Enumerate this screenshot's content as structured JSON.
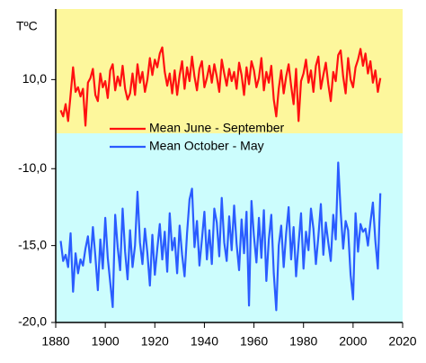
{
  "chart_data": [
    {
      "type": "line",
      "y_label": "TºC",
      "x": [
        1882,
        1883,
        1884,
        1885,
        1886,
        1887,
        1888,
        1889,
        1890,
        1891,
        1892,
        1893,
        1894,
        1895,
        1896,
        1897,
        1898,
        1899,
        1900,
        1901,
        1902,
        1903,
        1904,
        1905,
        1906,
        1907,
        1908,
        1909,
        1910,
        1911,
        1912,
        1913,
        1914,
        1915,
        1916,
        1917,
        1918,
        1919,
        1920,
        1921,
        1922,
        1923,
        1924,
        1925,
        1926,
        1927,
        1928,
        1929,
        1930,
        1931,
        1932,
        1933,
        1934,
        1935,
        1936,
        1937,
        1938,
        1939,
        1940,
        1941,
        1942,
        1943,
        1944,
        1945,
        1946,
        1947,
        1948,
        1949,
        1950,
        1951,
        1952,
        1953,
        1954,
        1955,
        1956,
        1957,
        1958,
        1959,
        1960,
        1961,
        1962,
        1963,
        1964,
        1965,
        1966,
        1967,
        1968,
        1969,
        1970,
        1971,
        1972,
        1973,
        1974,
        1975,
        1976,
        1977,
        1978,
        1979,
        1980,
        1981,
        1982,
        1983,
        1984,
        1985,
        1986,
        1987,
        1988,
        1989,
        1990,
        1991,
        1992,
        1993,
        1994,
        1995,
        1996,
        1997,
        1998,
        1999,
        2000,
        2001,
        2002,
        2003,
        2004,
        2005,
        2006,
        2007,
        2008,
        2009,
        2010,
        2011
      ],
      "xlim": [
        1880,
        2020
      ],
      "ylim": [
        6.5,
        14.6
      ],
      "yticks": [
        {
          "value": 10,
          "label": "10,0"
        }
      ],
      "background": "#fdf79c",
      "series": [
        {
          "name": "Mean June - September",
          "color": "#ff1010",
          "values": [
            8.0,
            7.6,
            8.4,
            7.3,
            9.0,
            10.8,
            9.2,
            9.5,
            8.9,
            9.4,
            7.0,
            9.8,
            10.1,
            10.7,
            9.0,
            8.6,
            10.4,
            9.5,
            9.9,
            8.8,
            10.6,
            11.0,
            9.3,
            10.2,
            9.6,
            10.9,
            9.4,
            8.7,
            9.1,
            10.4,
            9.0,
            11.0,
            9.8,
            10.5,
            9.2,
            10.0,
            11.4,
            10.3,
            11.3,
            10.8,
            11.7,
            12.1,
            10.5,
            9.6,
            10.4,
            9.1,
            10.6,
            9.0,
            10.3,
            11.2,
            9.4,
            10.8,
            9.9,
            11.5,
            10.2,
            9.3,
            10.7,
            11.2,
            9.5,
            10.1,
            10.9,
            9.8,
            11.0,
            10.2,
            9.2,
            11.3,
            10.4,
            9.6,
            10.7,
            9.9,
            10.5,
            9.4,
            11.1,
            10.3,
            9.0,
            10.8,
            9.7,
            11.2,
            10.6,
            9.5,
            10.1,
            11.4,
            9.3,
            10.5,
            9.8,
            10.9,
            8.7,
            7.6,
            9.4,
            10.6,
            9.1,
            10.2,
            11.0,
            9.6,
            8.4,
            10.7,
            7.3,
            9.9,
            10.4,
            11.3,
            9.8,
            10.6,
            9.2,
            10.9,
            11.5,
            9.4,
            10.3,
            11.1,
            9.7,
            8.6,
            10.5,
            9.9,
            11.6,
            11.9,
            10.2,
            9.1,
            11.4,
            10.0,
            9.5,
            10.8,
            11.3,
            12.0,
            10.9,
            11.7,
            10.4,
            11.2,
            9.8,
            10.6,
            9.2,
            10.1
          ]
        }
      ]
    },
    {
      "type": "line",
      "x": [
        1882,
        1883,
        1884,
        1885,
        1886,
        1887,
        1888,
        1889,
        1890,
        1891,
        1892,
        1893,
        1894,
        1895,
        1896,
        1897,
        1898,
        1899,
        1900,
        1901,
        1902,
        1903,
        1904,
        1905,
        1906,
        1907,
        1908,
        1909,
        1910,
        1911,
        1912,
        1913,
        1914,
        1915,
        1916,
        1917,
        1918,
        1919,
        1920,
        1921,
        1922,
        1923,
        1924,
        1925,
        1926,
        1927,
        1928,
        1929,
        1930,
        1931,
        1932,
        1933,
        1934,
        1935,
        1936,
        1937,
        1938,
        1939,
        1940,
        1941,
        1942,
        1943,
        1944,
        1945,
        1946,
        1947,
        1948,
        1949,
        1950,
        1951,
        1952,
        1953,
        1954,
        1955,
        1956,
        1957,
        1958,
        1959,
        1960,
        1961,
        1962,
        1963,
        1964,
        1965,
        1966,
        1967,
        1968,
        1969,
        1970,
        1971,
        1972,
        1973,
        1974,
        1975,
        1976,
        1977,
        1978,
        1979,
        1980,
        1981,
        1982,
        1983,
        1984,
        1985,
        1986,
        1987,
        1988,
        1989,
        1990,
        1991,
        1992,
        1993,
        1994,
        1995,
        1996,
        1997,
        1998,
        1999,
        2000,
        2001,
        2002,
        2003,
        2004,
        2005,
        2006,
        2007,
        2008,
        2009,
        2010,
        2011
      ],
      "xlim": [
        1880,
        2020
      ],
      "xticks": [
        1880,
        1900,
        1920,
        1940,
        1960,
        1980,
        2000,
        2020
      ],
      "ylim": [
        -20,
        -7.7
      ],
      "yticks": [
        {
          "value": -10,
          "label": "-10,0"
        },
        {
          "value": -15,
          "label": "-15,0"
        },
        {
          "value": -20,
          "label": "-20,0"
        }
      ],
      "background": "#ccfdfd",
      "series": [
        {
          "name": "Mean October - May",
          "color": "#2a5cff",
          "values": [
            -14.7,
            -16.0,
            -15.6,
            -16.4,
            -14.2,
            -18.0,
            -15.5,
            -16.8,
            -15.9,
            -16.3,
            -15.2,
            -14.4,
            -16.1,
            -13.8,
            -15.7,
            -17.9,
            -14.6,
            -16.5,
            -13.2,
            -15.8,
            -17.4,
            -19.0,
            -13.0,
            -15.1,
            -16.6,
            -12.6,
            -15.4,
            -17.2,
            -14.0,
            -16.4,
            -15.0,
            -11.5,
            -14.8,
            -16.2,
            -13.9,
            -15.5,
            -17.6,
            -14.3,
            -16.9,
            -15.2,
            -13.6,
            -15.9,
            -14.1,
            -16.7,
            -12.9,
            -15.3,
            -14.5,
            -16.8,
            -13.7,
            -15.6,
            -17.0,
            -14.2,
            -12.0,
            -11.3,
            -15.1,
            -13.4,
            -16.3,
            -14.6,
            -12.8,
            -15.9,
            -14.0,
            -16.2,
            -12.6,
            -13.5,
            -15.7,
            -11.9,
            -14.8,
            -16.0,
            -13.1,
            -15.3,
            -12.4,
            -14.9,
            -16.6,
            -13.3,
            -15.5,
            -12.8,
            -18.9,
            -12.1,
            -14.4,
            -16.1,
            -13.2,
            -15.8,
            -12.7,
            -17.3,
            -14.6,
            -13.0,
            -16.8,
            -19.2,
            -15.0,
            -13.7,
            -16.4,
            -14.2,
            -12.5,
            -15.9,
            -13.8,
            -17.0,
            -14.9,
            -12.9,
            -16.5,
            -14.1,
            -15.3,
            -12.6,
            -13.9,
            -16.2,
            -14.4,
            -12.3,
            -15.6,
            -13.5,
            -14.8,
            -16.0,
            -13.0,
            -14.6,
            -9.6,
            -12.8,
            -15.2,
            -13.4,
            -14.0,
            -16.9,
            -18.5,
            -12.9,
            -15.4,
            -13.6,
            -14.1,
            -13.9,
            -15.0,
            -13.5,
            -12.2,
            -14.7,
            -16.5,
            -11.6
          ]
        }
      ]
    }
  ]
}
